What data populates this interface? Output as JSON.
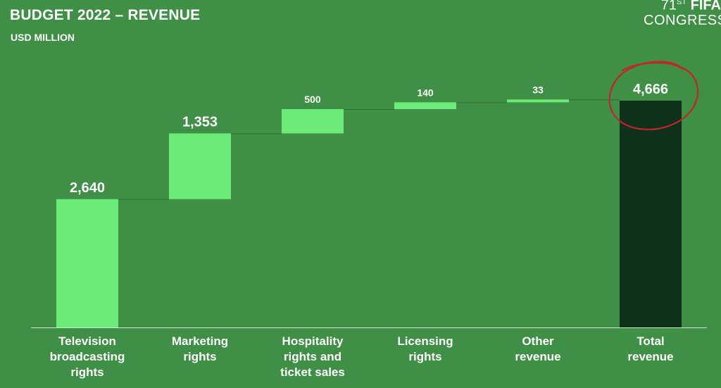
{
  "header": {
    "title": "BUDGET 2022 – REVENUE",
    "subtitle": "USD MILLION"
  },
  "brand": {
    "ordinal": "71",
    "ordinal_suffix": "ST",
    "name": "FIFA",
    "congress": "CONGRESS"
  },
  "colors": {
    "background": "#3f8f46",
    "increment_bar": "#6deb78",
    "total_bar": "#11301b",
    "annotation_circle": "#c0262d",
    "connector": "#2f6f35"
  },
  "chart_data": {
    "type": "bar",
    "subtype": "waterfall",
    "title": "BUDGET 2022 – REVENUE",
    "ylabel": "USD MILLION",
    "categories": [
      [
        "Television",
        "broadcasting",
        "rights"
      ],
      [
        "Marketing",
        "rights"
      ],
      [
        "Hospitality",
        "rights and",
        "ticket sales"
      ],
      [
        "Licensing",
        "rights"
      ],
      [
        "Other",
        "revenue"
      ],
      [
        "Total",
        "revenue"
      ]
    ],
    "values": [
      2640,
      1353,
      500,
      140,
      33,
      4666
    ],
    "value_labels": [
      "2,640",
      "1,353",
      "500",
      "140",
      "33",
      "4,666"
    ],
    "is_total": [
      false,
      false,
      false,
      false,
      false,
      true
    ],
    "ylim": [
      0,
      4666
    ],
    "grid": false,
    "annotation": "red hand-drawn circle around total value"
  }
}
